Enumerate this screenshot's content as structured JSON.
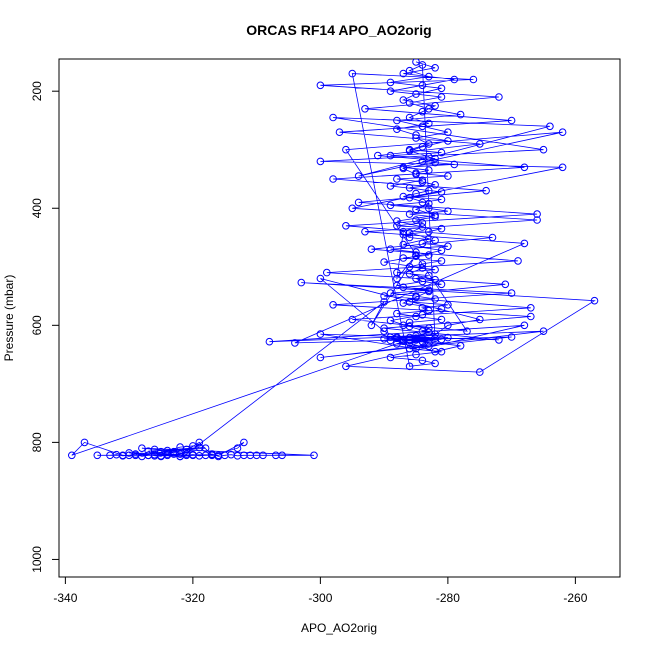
{
  "chart_data": {
    "type": "line",
    "title": "ORCAS RF14 APO_AO2orig",
    "xlabel": "APO_AO2orig",
    "ylabel": "Pressure (mbar)",
    "xlim": [
      -341,
      -253
    ],
    "ylim": [
      1030,
      145
    ],
    "y_reversed": true,
    "x_ticks": [
      -340,
      -320,
      -300,
      -280,
      -260
    ],
    "x_tick_labels": [
      "-340",
      "-320",
      "-300",
      "-280",
      "-260"
    ],
    "y_ticks": [
      200,
      400,
      600,
      800,
      1000
    ],
    "y_tick_labels": [
      "200",
      "400",
      "600",
      "800",
      "1000"
    ],
    "grid": false,
    "legend": "none",
    "series": [
      {
        "color": "#0000ff",
        "marker": "open-circle",
        "x": [
          -285,
          -282,
          -287,
          -279,
          -284,
          -289,
          -281,
          -286,
          -283,
          -278,
          -288,
          -284,
          -280,
          -285,
          -283,
          -286,
          -281,
          -289,
          -282,
          -284,
          -279,
          -287,
          -283,
          -285,
          -280,
          -288,
          -284,
          -282,
          -286,
          -283,
          -285,
          -287,
          -281,
          -284,
          -289,
          -283,
          -280,
          -286,
          -282,
          -285,
          -284,
          -288,
          -281,
          -283,
          -287,
          -286,
          -282,
          -284,
          -280,
          -289,
          -285,
          -283,
          -287,
          -281,
          -284,
          -286,
          -282,
          -288,
          -283,
          -285,
          -284,
          -281,
          -287,
          -283,
          -289,
          -285,
          -282,
          -286,
          -280,
          -284,
          -283,
          -288,
          -285,
          -281,
          -286,
          -287,
          -283,
          -284,
          -282,
          -289,
          -285,
          -281,
          -286,
          -284,
          -283,
          -288,
          -280,
          -285,
          -287,
          -282,
          -284,
          -286,
          -283,
          -289,
          -281,
          -285,
          -287,
          -282,
          -284,
          -286,
          -283,
          -288,
          -285,
          -280,
          -284,
          -286,
          -283,
          -282,
          -287,
          -285,
          -284,
          -289,
          -281,
          -286,
          -283,
          -285,
          -282,
          -288,
          -284,
          -286,
          -283,
          -287,
          -281,
          -285,
          -290,
          -284,
          -286,
          -282,
          -288,
          -283,
          -285,
          -287,
          -281,
          -284,
          -289,
          -286,
          -283,
          -285,
          -282,
          -287,
          -284,
          -288,
          -283,
          -286,
          -281,
          -285,
          -289,
          -284,
          -282,
          -286,
          -295,
          -276,
          -300,
          -272,
          -293,
          -270,
          -297,
          -275,
          -291,
          -268,
          -298,
          -274,
          -294,
          -266,
          -296,
          -273,
          -292,
          -269,
          -299,
          -271,
          -290,
          -267,
          -295,
          -277,
          -296,
          -262,
          -294,
          -264,
          -298,
          -265,
          -300,
          -262,
          -295,
          -266,
          -293,
          -268,
          -304,
          -270,
          -300,
          -265,
          -308,
          -268,
          -296,
          -275,
          -257,
          -303,
          -270,
          -298,
          -267,
          -290,
          -272,
          -300,
          -285,
          -280,
          -275,
          -300,
          -290,
          -286,
          -282,
          -278,
          -288,
          -287,
          -289,
          -286,
          -290,
          -285,
          -287,
          -288,
          -284,
          -286,
          -339,
          -337,
          -331,
          -327,
          -322,
          -319,
          -317,
          -313,
          -312,
          -316,
          -335,
          -333,
          -332,
          -331,
          -330,
          -329,
          -328,
          -327,
          -326,
          -325,
          -324,
          -323,
          -322,
          -321,
          -320,
          -319,
          -318,
          -317,
          -316,
          -315,
          -314,
          -313,
          -312,
          -311,
          -310,
          -309,
          -307,
          -306,
          -301,
          -328,
          -326,
          -324,
          -322,
          -320,
          -318,
          -325,
          -323,
          -321,
          -327,
          -319,
          -329,
          -317,
          -326,
          -324,
          -322,
          -320,
          -330,
          -325,
          -323,
          -321,
          -290,
          -292,
          -285,
          -288,
          -287
        ],
        "y": [
          150,
          160,
          170,
          180,
          190,
          200,
          210,
          220,
          230,
          240,
          250,
          260,
          270,
          280,
          290,
          300,
          305,
          310,
          315,
          320,
          325,
          330,
          335,
          340,
          345,
          350,
          355,
          360,
          365,
          370,
          375,
          380,
          385,
          390,
          395,
          400,
          405,
          410,
          415,
          420,
          425,
          430,
          435,
          440,
          445,
          450,
          455,
          460,
          465,
          470,
          475,
          480,
          485,
          490,
          495,
          500,
          505,
          510,
          515,
          520,
          525,
          530,
          535,
          540,
          545,
          550,
          555,
          560,
          565,
          570,
          575,
          580,
          585,
          590,
          595,
          600,
          605,
          610,
          615,
          620,
          622,
          624,
          626,
          628,
          630,
          622,
          621,
          623,
          625,
          627,
          155,
          165,
          175,
          185,
          195,
          205,
          215,
          225,
          235,
          245,
          255,
          265,
          275,
          285,
          295,
          302,
          312,
          322,
          332,
          342,
          352,
          362,
          372,
          382,
          392,
          402,
          412,
          422,
          432,
          442,
          452,
          462,
          472,
          482,
          492,
          502,
          512,
          522,
          532,
          542,
          552,
          562,
          572,
          582,
          592,
          602,
          612,
          618,
          622,
          625,
          628,
          632,
          636,
          640,
          645,
          650,
          655,
          660,
          665,
          670,
          170,
          180,
          190,
          210,
          230,
          250,
          270,
          290,
          310,
          330,
          350,
          370,
          390,
          410,
          430,
          450,
          470,
          490,
          510,
          530,
          550,
          570,
          590,
          610,
          300,
          270,
          345,
          260,
          245,
          300,
          320,
          330,
          400,
          420,
          440,
          460,
          630,
          620,
          655,
          610,
          628,
          600,
          670,
          680,
          558,
          527,
          545,
          565,
          585,
          605,
          625,
          615,
          640,
          600,
          590,
          520,
          610,
          630,
          645,
          635,
          622,
          624,
          626,
          621,
          623,
          625,
          627,
          620,
          622,
          624,
          822,
          800,
          822,
          822,
          820,
          800,
          822,
          810,
          800,
          822,
          822,
          822,
          821,
          823,
          822,
          820,
          824,
          822,
          821,
          823,
          822,
          820,
          824,
          822,
          821,
          823,
          822,
          820,
          824,
          822,
          821,
          823,
          822,
          822,
          822,
          822,
          822,
          822,
          822,
          810,
          812,
          814,
          808,
          806,
          810,
          816,
          818,
          812,
          815,
          809,
          822,
          821,
          823,
          820,
          824,
          822,
          818,
          824,
          816,
          820,
          560,
          600,
          480,
          520,
          440
        ]
      }
    ]
  }
}
